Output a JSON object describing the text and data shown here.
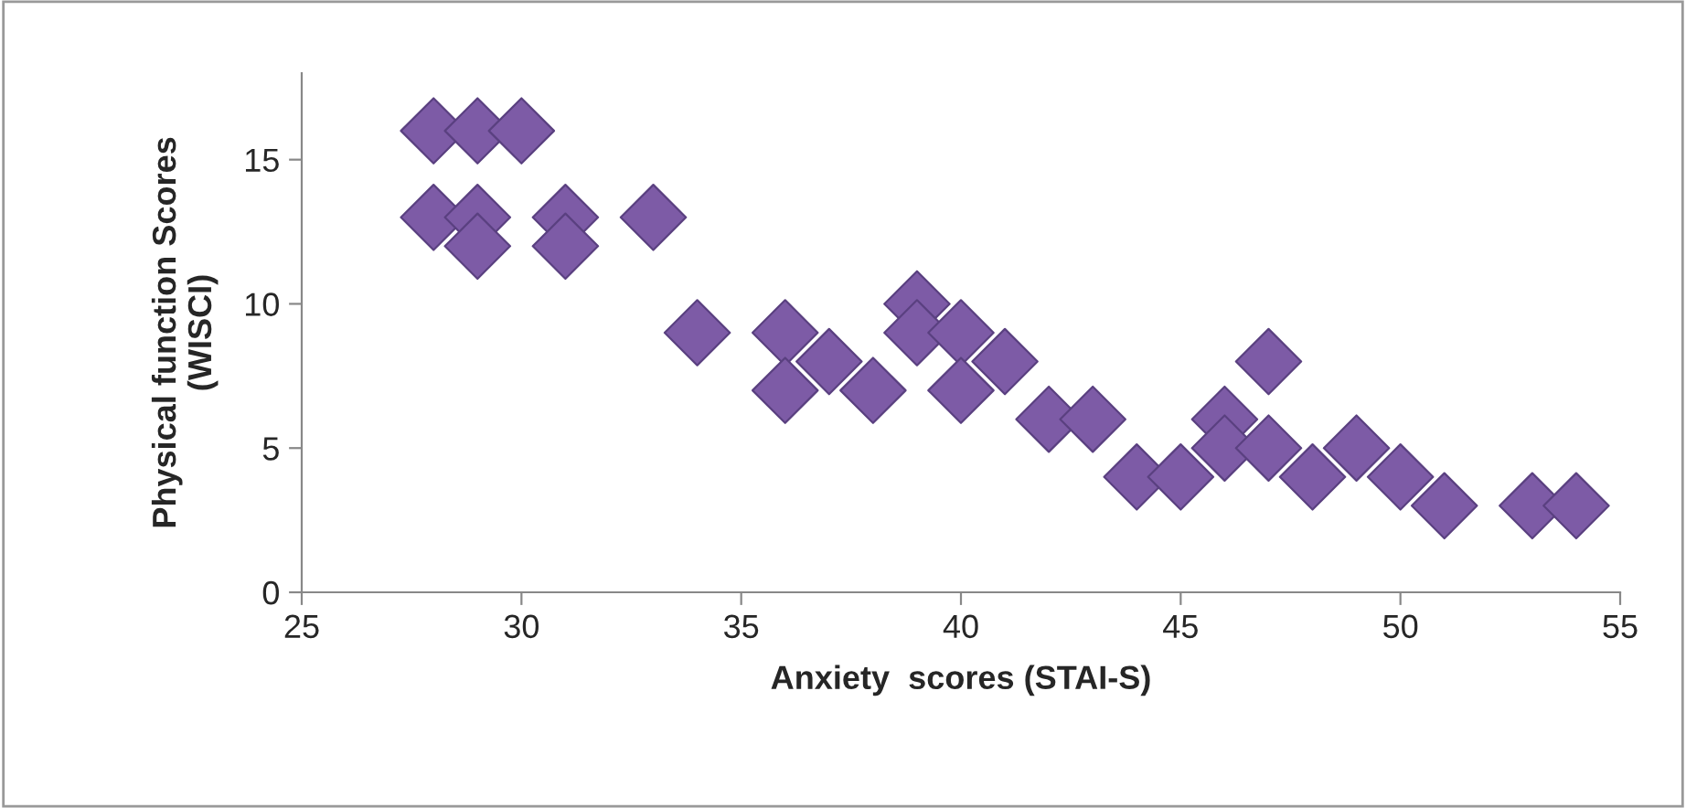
{
  "chart_data": {
    "type": "scatter",
    "xlabel": "Anxiety  scores (STAI-S)",
    "ylabel": "Physical function Scores\n(WISCI)",
    "x": [
      28,
      29,
      30,
      28,
      29,
      29,
      31,
      31,
      33,
      34,
      36,
      36,
      37,
      38,
      39,
      39,
      40,
      40,
      41,
      42,
      43,
      44,
      45,
      46,
      46,
      47,
      47,
      48,
      49,
      50,
      51,
      53,
      54
    ],
    "series": [
      {
        "color": "#7d5ba6",
        "values": [
          16,
          16,
          16,
          13,
          13,
          12,
          13,
          12,
          13,
          9,
          9,
          7,
          8,
          7,
          10,
          9,
          9,
          7,
          8,
          6,
          6,
          4,
          4,
          6,
          5,
          8,
          5,
          4,
          5,
          4,
          3,
          3,
          3
        ]
      }
    ],
    "xlim": [
      25,
      55
    ],
    "xticks": [
      25,
      30,
      35,
      40,
      45,
      50,
      55
    ],
    "ylim": [
      0,
      18
    ],
    "yticks": [
      0,
      5,
      10,
      15
    ],
    "marker": "diamond",
    "grid": false,
    "legend": false
  }
}
